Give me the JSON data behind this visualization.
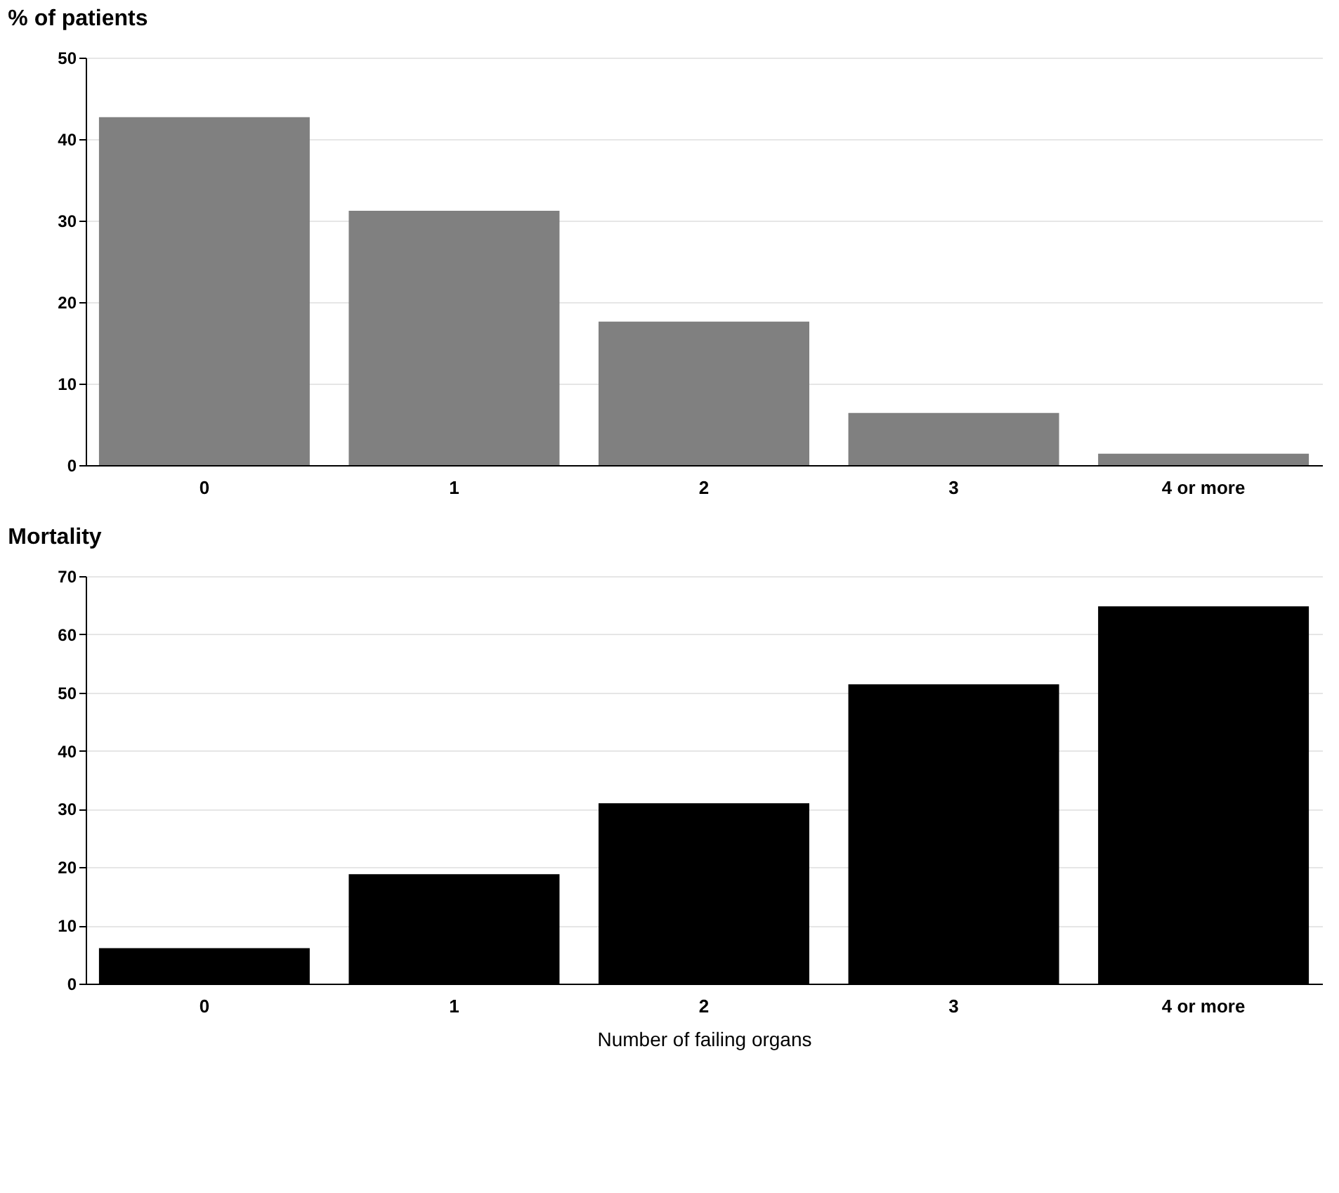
{
  "chart_data": [
    {
      "type": "bar",
      "title": "% of patients",
      "categories": [
        "0",
        "1",
        "2",
        "3",
        "4 or more"
      ],
      "values": [
        42.7,
        31.2,
        17.6,
        6.4,
        1.4
      ],
      "color": "#808080",
      "ylim": [
        0,
        50
      ],
      "yticks": [
        0,
        10,
        20,
        30,
        40,
        50
      ],
      "grid": "y"
    },
    {
      "type": "bar",
      "title": "Mortality",
      "xlabel": "Number of failing organs",
      "categories": [
        "0",
        "1",
        "2",
        "3",
        "4 or more"
      ],
      "values": [
        6.1,
        18.8,
        31.0,
        51.4,
        64.8
      ],
      "color": "#000000",
      "ylim": [
        0,
        70
      ],
      "yticks": [
        0,
        10,
        20,
        30,
        40,
        50,
        60,
        70
      ],
      "grid": "y"
    }
  ]
}
